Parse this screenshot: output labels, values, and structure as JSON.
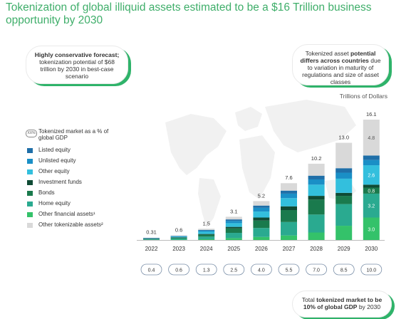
{
  "title": "Tokenization of global illiquid assets estimated to be a $16 Trillion business opportunity by 2030",
  "callout_left": {
    "bold": "Highly conservative forecast;",
    "text": "tokenization potential of $68 trillion by 2030 in best-case scenario"
  },
  "callout_right": {
    "pre": "Tokenized asset ",
    "bold": "potential differs across countries",
    "post": " due to variation in maturity of regulations and size of asset classes"
  },
  "callout_bottom": {
    "pre": "Total ",
    "bold1": "tokenized market to be 10% of global GDP",
    "post": " by 2030"
  },
  "units": "Trillions of Dollars",
  "legend": {
    "gdp_badge": "XX%",
    "gdp_label": "Tokenized market as a % of global GDP",
    "items": [
      {
        "label": "Listed equity",
        "color": "#1f6fa8"
      },
      {
        "label": "Unlisted equity",
        "color": "#1a8fc6"
      },
      {
        "label": "Other equity",
        "color": "#33bfdd"
      },
      {
        "label": "Investment funds",
        "color": "#0f4b35"
      },
      {
        "label": "Bonds",
        "color": "#1a7a4d"
      },
      {
        "label": "Home equity",
        "color": "#2aaa90"
      },
      {
        "label": "Other financial assets¹",
        "color": "#34c26a"
      },
      {
        "label": "Other tokenizable assets²",
        "color": "#d9d9d9"
      }
    ]
  },
  "chart_data": {
    "type": "bar",
    "stacked": true,
    "categories": [
      "2022",
      "2023",
      "2024",
      "2025",
      "2026",
      "2027",
      "2028",
      "2029",
      "2030"
    ],
    "totals": [
      0.31,
      0.6,
      1.5,
      3.1,
      5.2,
      7.6,
      10.2,
      13.0,
      16.1
    ],
    "total_labels": [
      "0.31",
      "0.6",
      "1.5",
      "3.1",
      "5.2",
      "7.6",
      "10.2",
      "13.0",
      "16.1"
    ],
    "gdp_percent": [
      "0.4",
      "0.6",
      "1.3",
      "2.5",
      "4.0",
      "5.5",
      "7.0",
      "8.5",
      "10.0"
    ],
    "series": [
      {
        "name": "Other financial assets¹",
        "color": "#34c26a",
        "values": [
          0.02,
          0.05,
          0.1,
          0.25,
          0.4,
          0.6,
          1.0,
          1.9,
          3.0
        ],
        "labels": {
          "8": "3.0"
        }
      },
      {
        "name": "Home equity",
        "color": "#2aaa90",
        "values": [
          0.08,
          0.15,
          0.35,
          0.7,
          1.2,
          1.8,
          2.4,
          2.9,
          3.2
        ],
        "labels": {
          "8": "3.2"
        }
      },
      {
        "name": "Bonds",
        "color": "#1a7a4d",
        "values": [
          0.05,
          0.1,
          0.25,
          0.6,
          1.0,
          1.6,
          2.0,
          1.1,
          0.8
        ],
        "labels": {
          "8": "0.8"
        }
      },
      {
        "name": "Investment funds",
        "color": "#0f4b35",
        "values": [
          0.02,
          0.05,
          0.1,
          0.2,
          0.4,
          0.5,
          0.5,
          0.4,
          0.4
        ],
        "labels": {
          "8": "0.4"
        }
      },
      {
        "name": "Other equity",
        "color": "#33bfdd",
        "values": [
          0.06,
          0.1,
          0.3,
          0.5,
          0.8,
          1.1,
          1.5,
          1.9,
          2.6
        ],
        "labels": {
          "8": "2.6"
        }
      },
      {
        "name": "Unlisted equity",
        "color": "#1a8fc6",
        "values": [
          0.03,
          0.05,
          0.15,
          0.3,
          0.5,
          0.6,
          0.7,
          0.8,
          0.7
        ],
        "labels": {
          "8": "0.7"
        }
      },
      {
        "name": "Listed equity",
        "color": "#1f6fa8",
        "values": [
          0.02,
          0.04,
          0.1,
          0.2,
          0.3,
          0.4,
          0.5,
          0.6,
          0.6
        ],
        "labels": {
          "8": "0.6"
        }
      },
      {
        "name": "Other tokenizable assets²",
        "color": "#d9d9d9",
        "values": [
          0.03,
          0.06,
          0.15,
          0.35,
          0.6,
          1.0,
          1.6,
          3.4,
          4.8
        ],
        "labels": {
          "8": "4.8"
        }
      }
    ],
    "ylim": [
      0,
      16.1
    ]
  }
}
